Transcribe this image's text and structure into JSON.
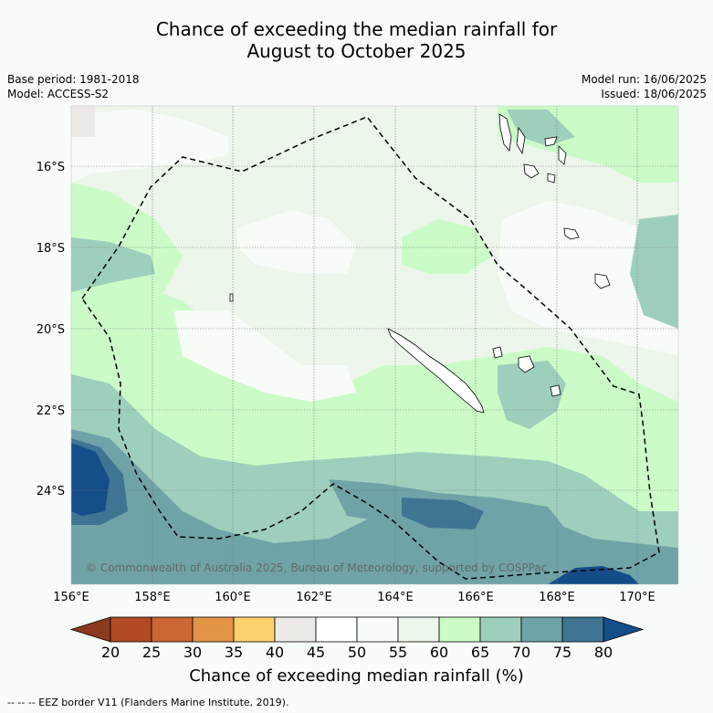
{
  "title_line1": "Chance of exceeding the median rainfall for",
  "title_line2": "August to October 2025",
  "base_period": "Base period: 1981-2018",
  "model": "Model: ACCESS-S2",
  "model_run": "Model run: 16/06/2025",
  "issued": "Issued: 18/06/2025",
  "copyright": "© Commonwealth of Australia 2025, Bureau of Meteorology, supported by COSPPac",
  "lat_labels": [
    "16°S",
    "18°S",
    "20°S",
    "22°S",
    "24°S"
  ],
  "lon_labels": [
    "156°E",
    "158°E",
    "160°E",
    "162°E",
    "164°E",
    "166°E",
    "168°E",
    "170°E"
  ],
  "colorbar": {
    "ticks": [
      "20",
      "25",
      "30",
      "35",
      "40",
      "45",
      "50",
      "55",
      "60",
      "65",
      "70",
      "75",
      "80"
    ],
    "colors": [
      "#8c3a1f",
      "#b24a25",
      "#cc6633",
      "#e39446",
      "#fdd06e",
      "#ede9e6",
      "#ffffff",
      "#f7fcf8",
      "#ecf6ea",
      "#cbfcc8",
      "#9ecfbc",
      "#6fa3a8",
      "#3f7593",
      "#154d88"
    ],
    "label": "Chance of exceeding median rainfall (%)"
  },
  "footnote": "--  --  -- EEZ border V11 (Flanders Marine Institute, 2019)."
}
